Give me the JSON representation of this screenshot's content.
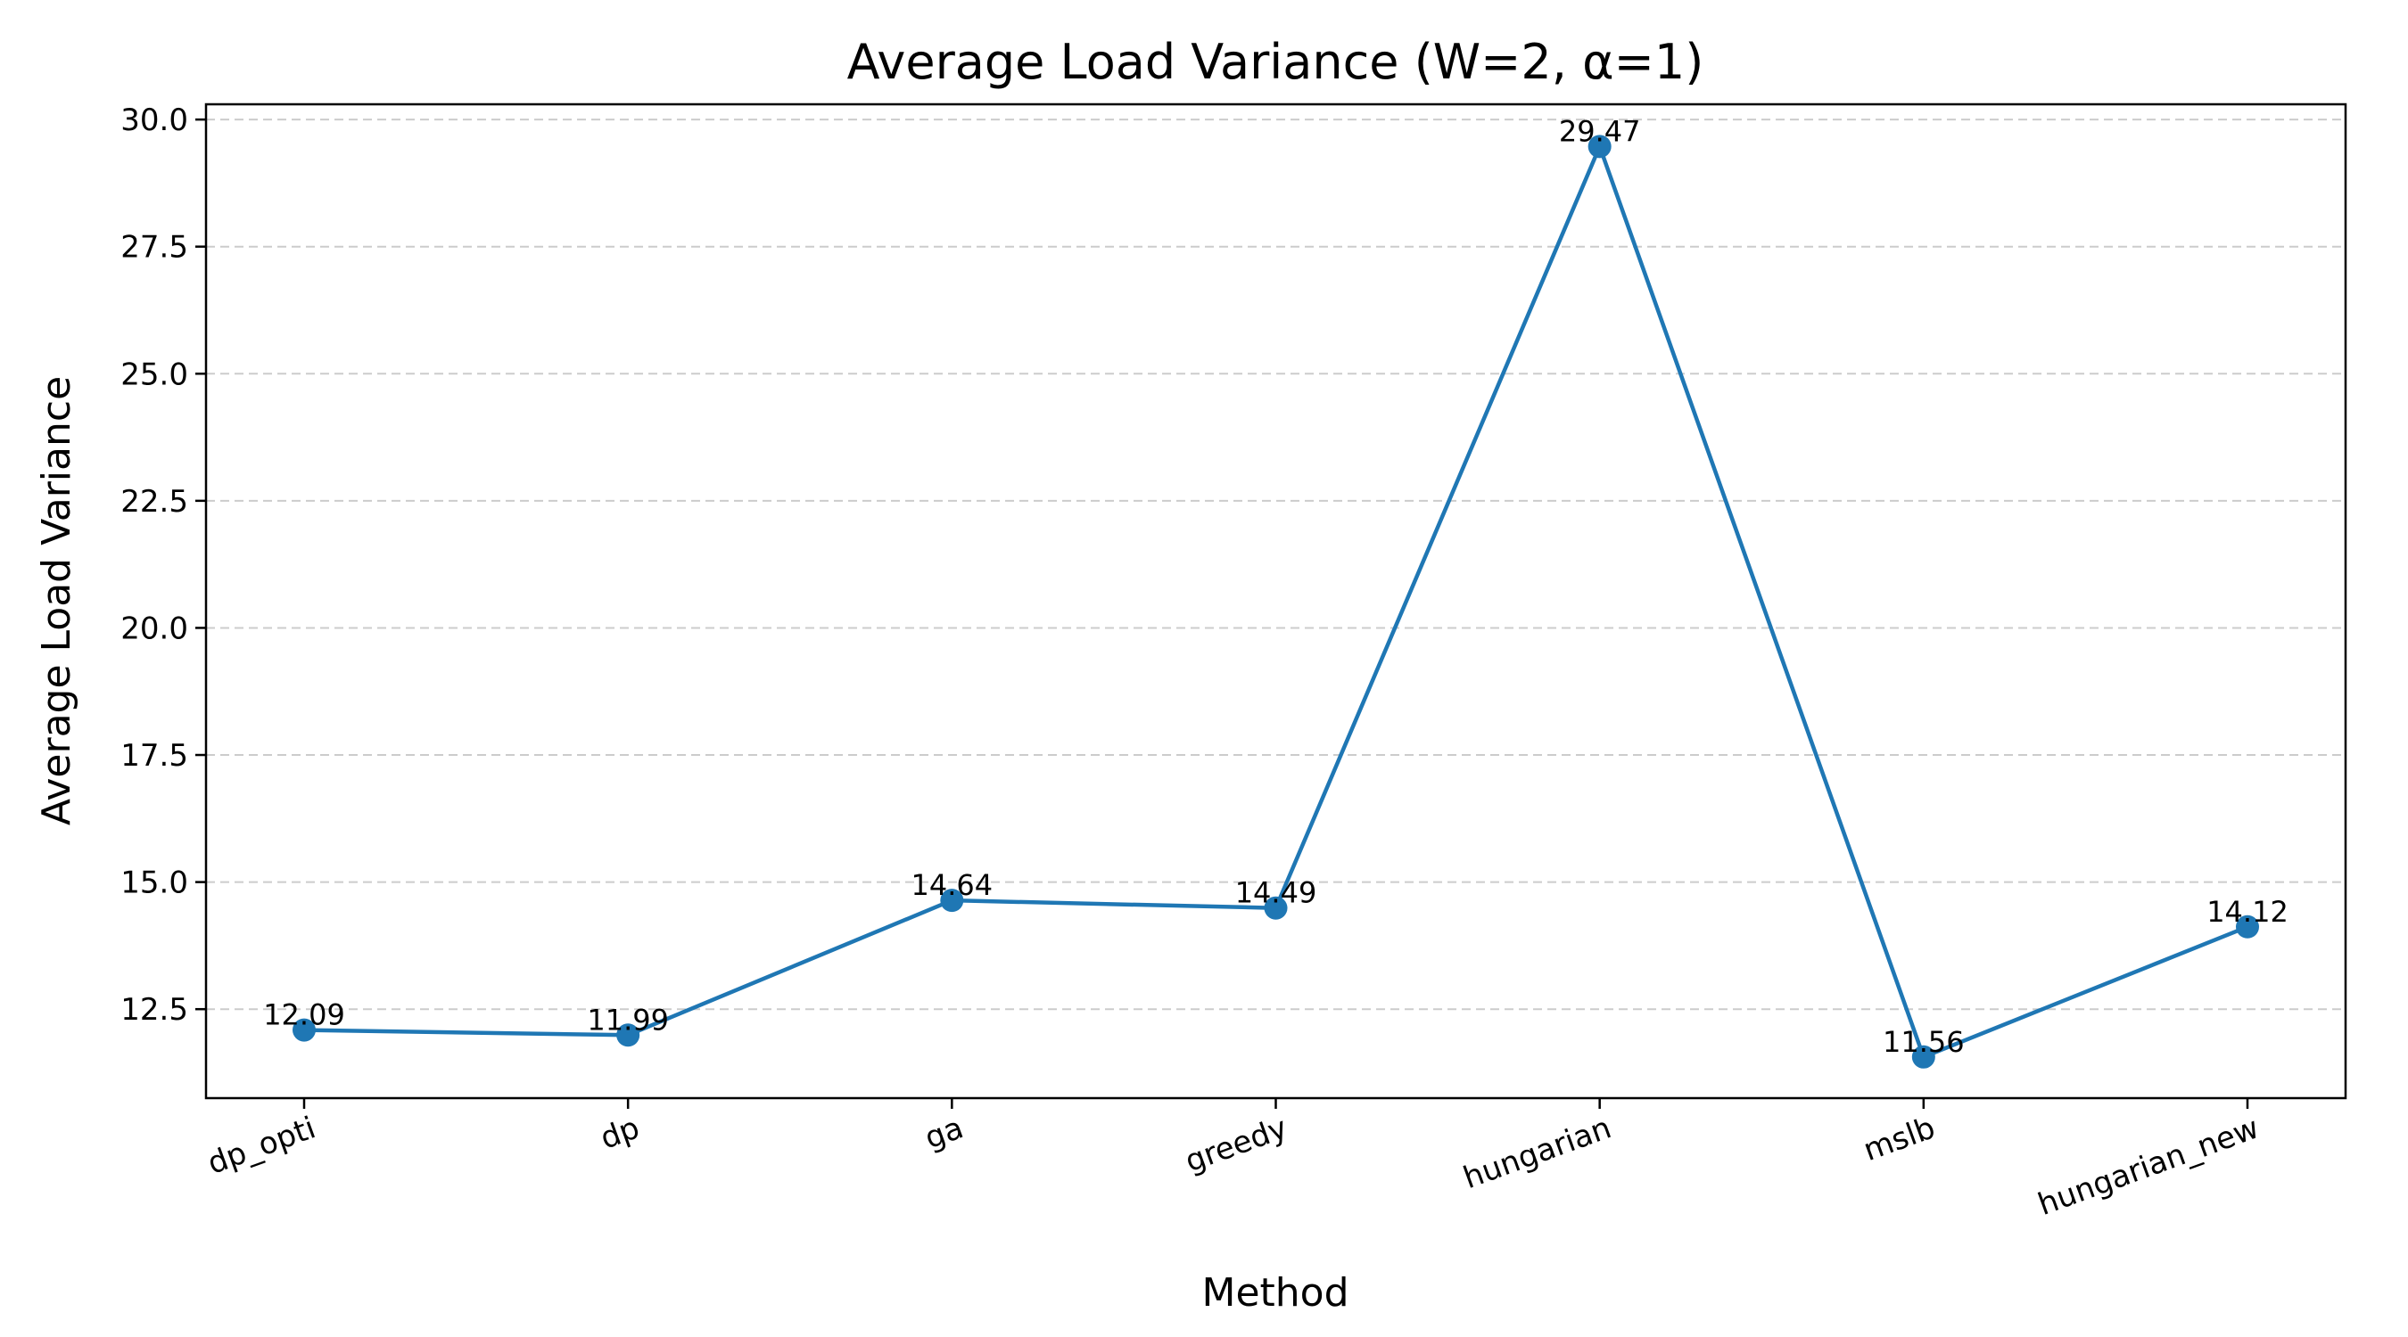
{
  "chart_data": {
    "type": "line",
    "title": "Average Load Variance (W=2, α=1)",
    "xlabel": "Method",
    "ylabel": "Average Load Variance",
    "categories": [
      "dp_opti",
      "dp",
      "ga",
      "greedy",
      "hungarian",
      "mslb",
      "hungarian_new"
    ],
    "values": [
      12.09,
      11.99,
      14.64,
      14.49,
      29.47,
      11.56,
      14.12
    ],
    "data_labels": [
      "12.09",
      "11.99",
      "14.64",
      "14.49",
      "29.47",
      "11.56",
      "14.12"
    ],
    "ylim": [
      10.75,
      30.3
    ],
    "yticks": [
      12.5,
      15.0,
      17.5,
      20.0,
      22.5,
      25.0,
      27.5,
      30.0
    ],
    "ytick_labels": [
      "12.5",
      "15.0",
      "17.5",
      "20.0",
      "22.5",
      "25.0",
      "27.5",
      "30.0"
    ],
    "x_tick_rotation_deg": 20,
    "grid": "y-dashed",
    "line_color": "#1f77b4",
    "grid_color": "#cccccc"
  }
}
